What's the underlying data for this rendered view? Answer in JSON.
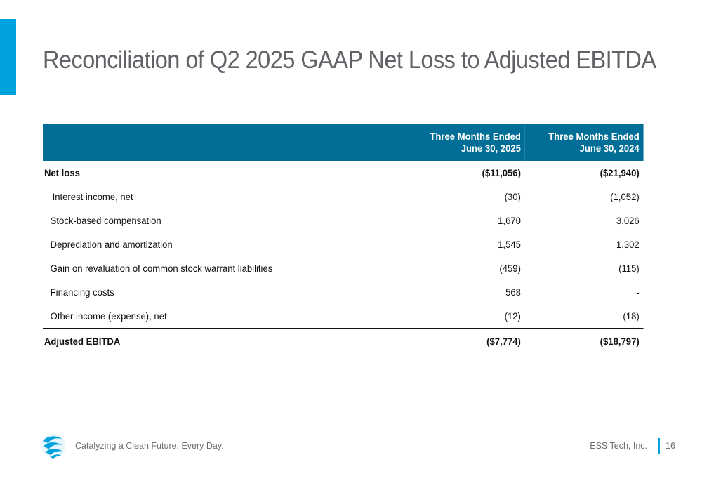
{
  "slide": {
    "title": "Reconciliation of Q2 2025 GAAP Net Loss to Adjusted EBITDA"
  },
  "table": {
    "headers": [
      "",
      "Three Months Ended June 30, 2025",
      "Three Months Ended June 30, 2024"
    ],
    "rows": [
      {
        "label": "Net loss",
        "q2_2025": "($11,056)",
        "q2_2024": "($21,940)"
      },
      {
        "label": "Interest income, net",
        "q2_2025": "(30)",
        "q2_2024": "(1,052)"
      },
      {
        "label": "Stock-based compensation",
        "q2_2025": "1,670",
        "q2_2024": "3,026"
      },
      {
        "label": "Depreciation and amortization",
        "q2_2025": "1,545",
        "q2_2024": "1,302"
      },
      {
        "label": "Gain on revaluation of common stock warrant liabilities",
        "q2_2025": "(459)",
        "q2_2024": "(115)"
      },
      {
        "label": "Financing costs",
        "q2_2025": "568",
        "q2_2024": "-"
      },
      {
        "label": "Other income (expense), net",
        "q2_2025": "(12)",
        "q2_2024": "(18)"
      },
      {
        "label": "Adjusted EBITDA",
        "q2_2025": "($7,774)",
        "q2_2024": "($18,797)"
      }
    ]
  },
  "footer": {
    "tagline": "Catalyzing a Clean Future. Every Day.",
    "company": "ESS Tech, Inc.",
    "page_number": "16",
    "logo_icon": "ess-wave-logo-icon"
  },
  "colors": {
    "accent": "#00A3DD",
    "header_fill": "#006E96",
    "title_text": "#5F6266"
  }
}
